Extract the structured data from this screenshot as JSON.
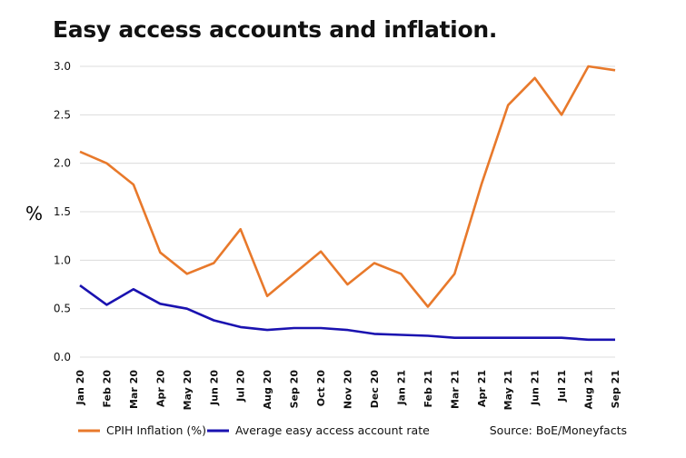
{
  "chart_data": {
    "type": "line",
    "title": "Easy access accounts and inflation.",
    "ylabel": "%",
    "xlabel": "",
    "ylim": [
      0,
      3.0
    ],
    "yticks": [
      "0.0",
      "0.5",
      "1.0",
      "1.5",
      "2.0",
      "2.5",
      "3.0"
    ],
    "categories": [
      "Jan 20",
      "Feb 20",
      "Mar 20",
      "Apr 20",
      "May 20",
      "Jun 20",
      "Jul 20",
      "Aug 20",
      "Sep 20",
      "Oct 20",
      "Nov 20",
      "Dec 20",
      "Jan 21",
      "Feb 21",
      "Mar 21",
      "Apr 21",
      "May 21",
      "Jun 21",
      "Jul 21",
      "Aug 21",
      "Sep 21"
    ],
    "series": [
      {
        "name": "CPIH Inflation (%)",
        "color": "#E8792B",
        "values": [
          2.12,
          2.0,
          1.78,
          1.08,
          0.86,
          0.97,
          1.32,
          0.63,
          0.86,
          1.09,
          0.75,
          0.97,
          0.86,
          0.52,
          0.86,
          1.78,
          2.6,
          2.88,
          2.5,
          3.0,
          2.96
        ]
      },
      {
        "name": "Average easy access account rate",
        "color": "#1A12B0",
        "values": [
          0.74,
          0.54,
          0.7,
          0.55,
          0.5,
          0.38,
          0.31,
          0.28,
          0.3,
          0.3,
          0.28,
          0.24,
          0.23,
          0.22,
          0.2,
          0.2,
          0.2,
          0.2,
          0.2,
          0.18,
          0.18
        ]
      }
    ],
    "grid": true,
    "legend": "bottom",
    "source": "Source: BoE/Moneyfacts"
  }
}
